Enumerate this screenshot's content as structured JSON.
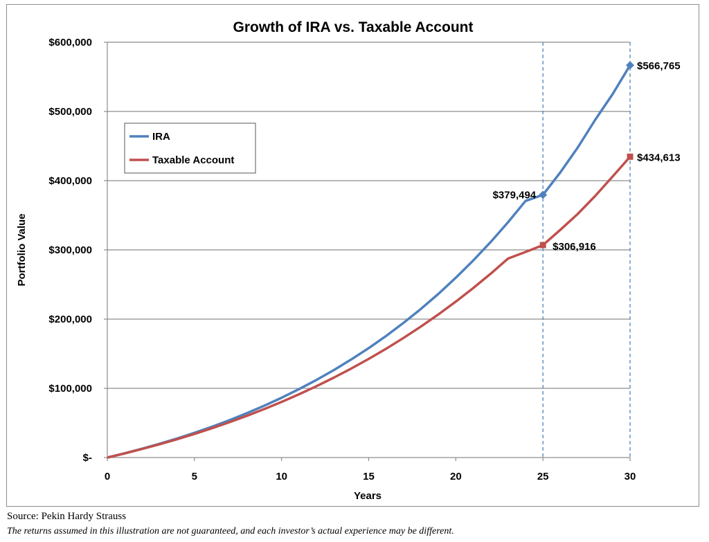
{
  "chart_data": {
    "type": "line",
    "title": "Growth of IRA vs. Taxable Account",
    "xlabel": "Years",
    "ylabel": "Portfolio Value",
    "xlim": [
      0,
      30
    ],
    "ylim": [
      0,
      600000
    ],
    "x_ticks": [
      "0",
      "5",
      "10",
      "15",
      "20",
      "25",
      "30"
    ],
    "y_ticks": [
      "$-",
      "$100,000",
      "$200,000",
      "$300,000",
      "$400,000",
      "$500,000",
      "$600,000"
    ],
    "grid": "horizontal",
    "legend_position": "top-left",
    "reference_lines_x": [
      25,
      30
    ],
    "x": [
      0,
      1,
      2,
      3,
      4,
      5,
      6,
      7,
      8,
      9,
      10,
      11,
      12,
      13,
      14,
      15,
      16,
      17,
      18,
      19,
      20,
      21,
      22,
      23,
      24,
      25,
      26,
      27,
      28,
      29,
      30
    ],
    "series": [
      {
        "name": "IRA",
        "color": "#4f81bd",
        "values": [
          0,
          6200,
          12800,
          19900,
          27500,
          35700,
          44500,
          53900,
          64000,
          74800,
          86400,
          98800,
          112100,
          126400,
          141700,
          158100,
          175700,
          194600,
          214800,
          236500,
          259800,
          284700,
          311400,
          340000,
          370700,
          379494,
          412000,
          448000,
          488000,
          525000,
          566765
        ]
      },
      {
        "name": "Taxable Account",
        "color": "#c0504d",
        "values": [
          0,
          6000,
          12400,
          19200,
          26400,
          34100,
          42300,
          51000,
          60200,
          70000,
          80400,
          91400,
          103100,
          115500,
          128600,
          142500,
          157200,
          172800,
          189300,
          206800,
          225300,
          244900,
          265600,
          287500,
          297000,
          306916,
          329000,
          352000,
          378000,
          406000,
          434613
        ]
      }
    ],
    "annotations": [
      {
        "series": "IRA",
        "x": 25,
        "label": "$379,494"
      },
      {
        "series": "IRA",
        "x": 30,
        "label": "$566,765"
      },
      {
        "series": "Taxable Account",
        "x": 25,
        "label": "$306,916"
      },
      {
        "series": "Taxable Account",
        "x": 30,
        "label": "$434,613"
      }
    ]
  },
  "footer": {
    "source": "Source: Pekin Hardy Strauss",
    "disclaimer": "The returns assumed in this illustration are not guaranteed, and each investor’s actual experience may be different."
  }
}
